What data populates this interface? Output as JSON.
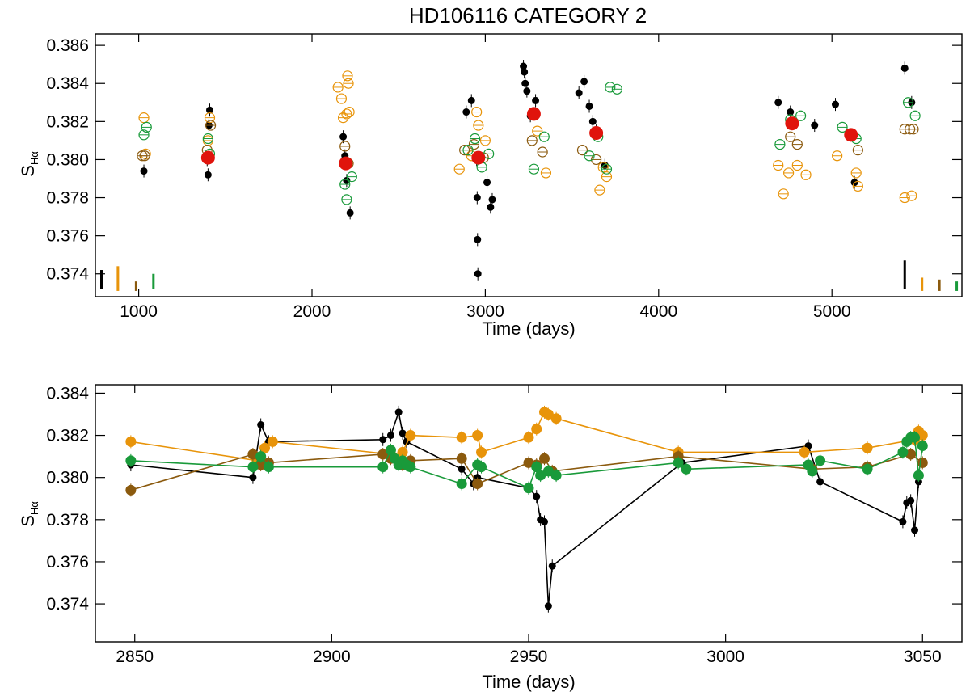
{
  "chart_data": [
    {
      "type": "scatter",
      "title": "HD106116 CATEGORY 2",
      "xlabel": "Time (days)",
      "ylabel_main": "S",
      "ylabel_sub": "Hα",
      "xlim": [
        750,
        5750
      ],
      "ylim": [
        0.3728,
        0.3866
      ],
      "xticks": [
        1000,
        2000,
        3000,
        4000,
        5000
      ],
      "xtick_labels": [
        "1000",
        "2000",
        "3000",
        "4000",
        "5000"
      ],
      "yticks": [
        0.374,
        0.376,
        0.378,
        0.38,
        0.382,
        0.384,
        0.386
      ],
      "ytick_labels": [
        "0.374",
        "0.376",
        "0.378",
        "0.380",
        "0.382",
        "0.384",
        "0.386"
      ],
      "colors": {
        "black": "#000000",
        "orange": "#e8940a",
        "brown": "#8b5a0e",
        "green": "#199a3a",
        "red": "#e0140c"
      },
      "series": [
        {
          "name": "black",
          "marker": "filled-circle",
          "color": "#000000",
          "x": [
            1030,
            1395,
            1400,
            1405,
            1410,
            2180,
            2190,
            2200,
            2220,
            2890,
            2920,
            2950,
            2953,
            2955,
            2957,
            3010,
            3030,
            3040,
            3220,
            3225,
            3230,
            3240,
            3260,
            3290,
            3540,
            3570,
            3600,
            3620,
            3640,
            3690,
            4690,
            4760,
            4900,
            5020,
            5130,
            5420,
            5460
          ],
          "y": [
            0.3794,
            0.38,
            0.3792,
            0.3818,
            0.3826,
            0.3812,
            0.3802,
            0.3789,
            0.3772,
            0.3825,
            0.3831,
            0.38,
            0.378,
            0.3758,
            0.374,
            0.3788,
            0.3775,
            0.3779,
            0.3849,
            0.3846,
            0.384,
            0.3836,
            0.3823,
            0.3831,
            0.3835,
            0.3841,
            0.3828,
            0.382,
            0.3815,
            0.3797,
            0.383,
            0.3825,
            0.3818,
            0.3829,
            0.3788,
            0.3848,
            0.383
          ]
        },
        {
          "name": "orange",
          "marker": "open-circle",
          "color": "#e8940a",
          "x": [
            1030,
            1040,
            1400,
            1410,
            2150,
            2170,
            2180,
            2200,
            2205,
            2210,
            2215,
            2850,
            2920,
            2950,
            2960,
            3000,
            3300,
            3350,
            3660,
            3680,
            3700,
            4690,
            4720,
            4750,
            4800,
            4850,
            5030,
            5140,
            5150,
            5420,
            5460
          ],
          "y": [
            0.3822,
            0.3803,
            0.381,
            0.3822,
            0.3838,
            0.3832,
            0.3822,
            0.3824,
            0.3844,
            0.384,
            0.3825,
            0.3795,
            0.3802,
            0.3825,
            0.3818,
            0.381,
            0.3815,
            0.3793,
            0.3784,
            0.3796,
            0.3791,
            0.3797,
            0.3782,
            0.3793,
            0.3797,
            0.3792,
            0.3802,
            0.3793,
            0.3786,
            0.378,
            0.3781
          ]
        },
        {
          "name": "brown",
          "marker": "open-circle",
          "color": "#8b5a0e",
          "x": [
            1020,
            1035,
            1395,
            1415,
            2190,
            2210,
            2880,
            2935,
            2990,
            3270,
            3330,
            3560,
            3640,
            4760,
            4800,
            5150,
            5420,
            5450,
            5470
          ],
          "y": [
            0.3802,
            0.3802,
            0.3805,
            0.3818,
            0.3807,
            0.3798,
            0.3805,
            0.3808,
            0.3801,
            0.381,
            0.3804,
            0.3805,
            0.38,
            0.3812,
            0.3808,
            0.3805,
            0.3816,
            0.3816,
            0.3816
          ]
        },
        {
          "name": "green",
          "marker": "open-circle",
          "color": "#199a3a",
          "x": [
            1030,
            1045,
            1400,
            1410,
            2190,
            2200,
            2230,
            2900,
            2940,
            2980,
            3020,
            3280,
            3340,
            3600,
            3650,
            3700,
            3720,
            3760,
            4700,
            4760,
            4820,
            5060,
            5140,
            5440,
            5480
          ],
          "y": [
            0.3813,
            0.3817,
            0.3811,
            0.3803,
            0.3787,
            0.3779,
            0.3791,
            0.3805,
            0.3811,
            0.3796,
            0.3803,
            0.3795,
            0.3812,
            0.3802,
            0.3812,
            0.3795,
            0.3838,
            0.3837,
            0.3808,
            0.3821,
            0.3823,
            0.3817,
            0.3811,
            0.383,
            0.3823
          ]
        },
        {
          "name": "seasonal-mean",
          "marker": "large-filled-circle",
          "color": "#e0140c",
          "x": [
            1400,
            2195,
            2960,
            3280,
            3640,
            4770,
            5110
          ],
          "y": [
            0.3801,
            0.3798,
            0.3801,
            0.3824,
            0.3814,
            0.3819,
            0.3813
          ]
        }
      ],
      "error_bar_keys": [
        {
          "color": "#000000",
          "x": 785,
          "y_low": 0.3732,
          "y_high": 0.3742
        },
        {
          "color": "#e8940a",
          "x": 880,
          "y_low": 0.3731,
          "y_high": 0.3744
        },
        {
          "color": "#8b5a0e",
          "x": 985,
          "y_low": 0.3731,
          "y_high": 0.3736
        },
        {
          "color": "#199a3a",
          "x": 1085,
          "y_low": 0.3732,
          "y_high": 0.374
        },
        {
          "color": "#000000",
          "x": 5420,
          "y_low": 0.3732,
          "y_high": 0.3747
        },
        {
          "color": "#e8940a",
          "x": 5520,
          "y_low": 0.3731,
          "y_high": 0.3738
        },
        {
          "color": "#8b5a0e",
          "x": 5620,
          "y_low": 0.3731,
          "y_high": 0.3737
        },
        {
          "color": "#199a3a",
          "x": 5720,
          "y_low": 0.3731,
          "y_high": 0.3736
        }
      ]
    },
    {
      "type": "line",
      "title": "",
      "xlabel": "Time (days)",
      "ylabel_main": "S",
      "ylabel_sub": "Hα",
      "xlim": [
        2840,
        3060
      ],
      "ylim": [
        0.3722,
        0.3844
      ],
      "xticks": [
        2850,
        2900,
        2950,
        3000,
        3050
      ],
      "xtick_labels": [
        "2850",
        "2900",
        "2950",
        "3000",
        "3050"
      ],
      "yticks": [
        0.374,
        0.376,
        0.378,
        0.38,
        0.382,
        0.384
      ],
      "ytick_labels": [
        "0.374",
        "0.376",
        "0.378",
        "0.380",
        "0.382",
        "0.384"
      ],
      "series": [
        {
          "name": "black",
          "color": "#000000",
          "marker_size": 4.5,
          "x": [
            2849,
            2880,
            2882,
            2884,
            2913,
            2915,
            2917,
            2918,
            2919,
            2933,
            2936,
            2937,
            2950,
            2952,
            2953,
            2954,
            2955,
            2956,
            2989,
            3021,
            3024,
            3045,
            3046,
            3047,
            3048,
            3049
          ],
          "y": [
            0.3806,
            0.38,
            0.3825,
            0.3817,
            0.3818,
            0.382,
            0.3831,
            0.3821,
            0.3817,
            0.3804,
            0.3797,
            0.38,
            0.3795,
            0.3791,
            0.378,
            0.3779,
            0.3739,
            0.3758,
            0.3807,
            0.3815,
            0.3798,
            0.3779,
            0.3788,
            0.3789,
            0.3775,
            0.3798
          ]
        },
        {
          "name": "orange",
          "color": "#e8940a",
          "marker_size": 6.5,
          "x": [
            2849,
            2881,
            2883,
            2885,
            2915,
            2918,
            2920,
            2933,
            2937,
            2938,
            2950,
            2952,
            2954,
            2955,
            2957,
            2988,
            3020,
            3036,
            3048,
            3049,
            3050
          ],
          "y": [
            0.3817,
            0.3808,
            0.3814,
            0.3817,
            0.3811,
            0.3812,
            0.382,
            0.3819,
            0.382,
            0.3812,
            0.3819,
            0.3823,
            0.3831,
            0.383,
            0.3828,
            0.3812,
            0.3812,
            0.3814,
            0.3818,
            0.3822,
            0.382
          ]
        },
        {
          "name": "brown",
          "color": "#8b5a0e",
          "marker_size": 6.5,
          "x": [
            2849,
            2880,
            2882,
            2884,
            2913,
            2915,
            2918,
            2920,
            2933,
            2937,
            2950,
            2952,
            2954,
            2956,
            2988,
            3022,
            3036,
            3047,
            3050
          ],
          "y": [
            0.3794,
            0.3811,
            0.3806,
            0.3807,
            0.3811,
            0.3809,
            0.3806,
            0.3808,
            0.3809,
            0.3797,
            0.3807,
            0.3806,
            0.3809,
            0.3803,
            0.381,
            0.3804,
            0.3805,
            0.3811,
            0.3807
          ]
        },
        {
          "name": "green",
          "color": "#199a3a",
          "marker_size": 6.5,
          "x": [
            2849,
            2880,
            2882,
            2884,
            2913,
            2915,
            2916,
            2917,
            2918,
            2919,
            2920,
            2933,
            2937,
            2938,
            2950,
            2952,
            2953,
            2955,
            2957,
            2988,
            2990,
            3021,
            3022,
            3024,
            3036,
            3045,
            3046,
            3047,
            3048,
            3049,
            3050
          ],
          "y": [
            0.3808,
            0.3805,
            0.381,
            0.3805,
            0.3805,
            0.3813,
            0.3809,
            0.3806,
            0.3808,
            0.3806,
            0.3805,
            0.3797,
            0.3806,
            0.3805,
            0.3795,
            0.3805,
            0.3801,
            0.3803,
            0.3801,
            0.3807,
            0.3804,
            0.3806,
            0.3803,
            0.3808,
            0.3804,
            0.3812,
            0.3817,
            0.3819,
            0.3819,
            0.3801,
            0.3815
          ]
        }
      ]
    }
  ]
}
